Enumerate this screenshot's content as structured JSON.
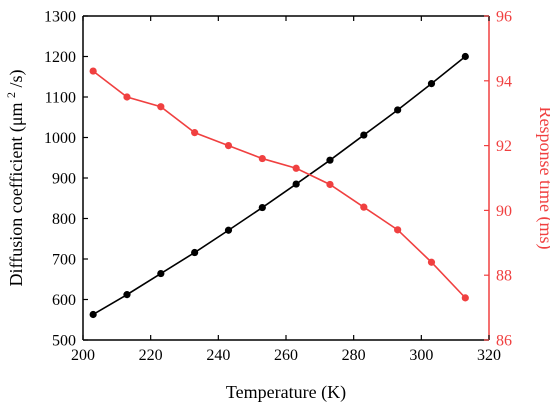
{
  "colors": {
    "left": "#000000",
    "right": "#f04040"
  },
  "chart_data": {
    "type": "line",
    "xlabel": "Temperature (K)",
    "ylabel_left": {
      "main": "Diffusion coefficient (μm",
      "sup": "2",
      "tail": "/s)"
    },
    "ylabel_right": "Response time (ms)",
    "xlim": [
      200,
      320
    ],
    "ylim_left": [
      500,
      1300
    ],
    "ylim_right": [
      86,
      96
    ],
    "x_ticks": [
      "200",
      "220",
      "240",
      "260",
      "280",
      "300",
      "320"
    ],
    "y_left_ticks": [
      "500",
      "600",
      "700",
      "800",
      "900",
      "1000",
      "1100",
      "1200",
      "1300"
    ],
    "y_right_ticks": [
      "86",
      "88",
      "90",
      "92",
      "94",
      "96"
    ],
    "grid": false,
    "series": [
      {
        "axis": "left",
        "color": "#000000",
        "x": [
          203,
          213,
          223,
          233,
          243,
          253,
          263,
          273,
          283,
          293,
          303,
          313
        ],
        "values": [
          563,
          612,
          664,
          716,
          771,
          827,
          885,
          944,
          1006,
          1068,
          1133,
          1200
        ]
      },
      {
        "axis": "right",
        "color": "#f04040",
        "x": [
          203,
          213,
          223,
          233,
          243,
          253,
          263,
          273,
          283,
          293,
          303,
          313
        ],
        "values": [
          94.3,
          93.5,
          93.2,
          92.4,
          92.0,
          91.6,
          91.3,
          90.8,
          90.1,
          89.4,
          88.4,
          87.3
        ]
      }
    ]
  }
}
